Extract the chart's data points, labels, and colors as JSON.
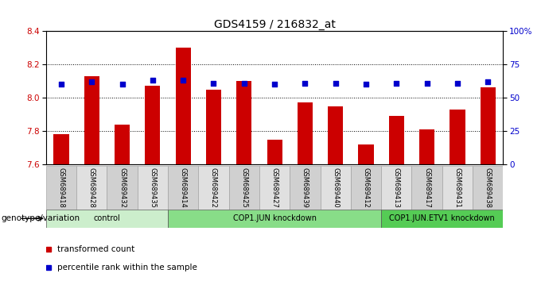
{
  "title": "GDS4159 / 216832_at",
  "samples": [
    "GSM689418",
    "GSM689428",
    "GSM689432",
    "GSM689435",
    "GSM689414",
    "GSM689422",
    "GSM689425",
    "GSM689427",
    "GSM689439",
    "GSM689440",
    "GSM689412",
    "GSM689413",
    "GSM689417",
    "GSM689431",
    "GSM689438"
  ],
  "bar_values": [
    7.78,
    8.13,
    7.84,
    8.07,
    8.3,
    8.05,
    8.1,
    7.75,
    7.97,
    7.95,
    7.72,
    7.89,
    7.81,
    7.93,
    8.06
  ],
  "percentile_values": [
    60,
    62,
    60,
    63,
    63,
    61,
    61,
    60,
    61,
    61,
    60,
    61,
    61,
    61,
    62
  ],
  "ylim_left": [
    7.6,
    8.4
  ],
  "ylim_right": [
    0,
    100
  ],
  "yticks_left": [
    7.6,
    7.8,
    8.0,
    8.2,
    8.4
  ],
  "yticks_right": [
    0,
    25,
    50,
    75,
    100
  ],
  "bar_color": "#cc0000",
  "dot_color": "#0000cc",
  "groups": [
    {
      "label": "control",
      "start": 0,
      "end": 4,
      "color": "#cceecc"
    },
    {
      "label": "COP1.JUN knockdown",
      "start": 4,
      "end": 11,
      "color": "#88dd88"
    },
    {
      "label": "COP1.JUN.ETV1 knockdown",
      "start": 11,
      "end": 15,
      "color": "#55cc55"
    }
  ],
  "xlabel": "genotype/variation",
  "legend_items": [
    {
      "label": "transformed count",
      "color": "#cc0000"
    },
    {
      "label": "percentile rank within the sample",
      "color": "#0000cc"
    }
  ],
  "gridlines": [
    7.8,
    8.0,
    8.2
  ],
  "background_color": "#ffffff",
  "tick_label_color_left": "#cc0000",
  "tick_label_color_right": "#0000cc",
  "bar_width": 0.5
}
